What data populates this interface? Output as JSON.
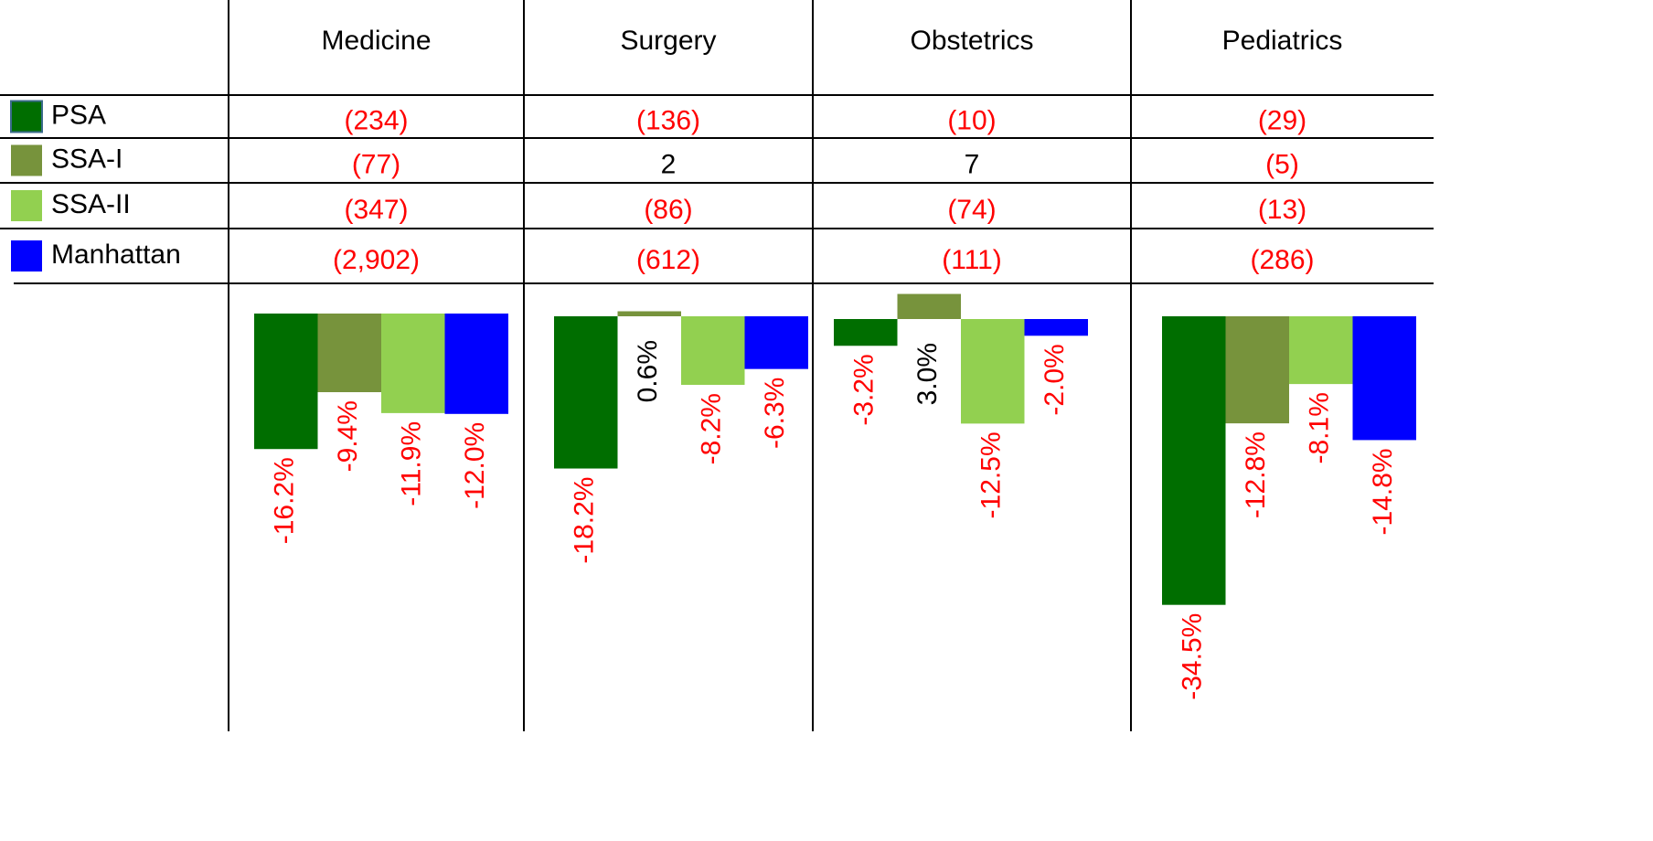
{
  "table": {
    "columns": [
      "Medicine",
      "Surgery",
      "Obstetrics",
      "Pediatrics"
    ],
    "rows": [
      {
        "label": "PSA",
        "color": "#006e00",
        "cells": [
          "(234)",
          "(136)",
          "(10)",
          "(29)"
        ]
      },
      {
        "label": "SSA-I",
        "color": "#77933c",
        "cells": [
          "(77)",
          "2",
          "7",
          "(5)"
        ]
      },
      {
        "label": "SSA-II",
        "color": "#92d050",
        "cells": [
          "(347)",
          "(86)",
          "(74)",
          "(13)"
        ]
      },
      {
        "label": "Manhattan",
        "color": "#0000ff",
        "cells": [
          "(2,902)",
          "(612)",
          "(111)",
          "(286)"
        ]
      }
    ]
  },
  "chart_data": [
    {
      "type": "bar",
      "values": [
        -16.2,
        -9.4,
        -11.9,
        -12.0
      ],
      "value_labels": [
        "-16.2%",
        "-9.4%",
        "-11.9%",
        "-12.0%"
      ]
    },
    {
      "type": "bar",
      "values": [
        -18.2,
        0.6,
        -8.2,
        -6.3
      ],
      "value_labels": [
        "-18.2%",
        "0.6%",
        "-8.2%",
        "-6.3%"
      ]
    },
    {
      "type": "bar",
      "values": [
        -3.2,
        3.0,
        -12.5,
        -2.0
      ],
      "value_labels": [
        "-3.2%",
        "3.0%",
        "-12.5%",
        "-2.0%"
      ]
    },
    {
      "type": "bar",
      "values": [
        -34.5,
        -12.8,
        -8.1,
        -14.8
      ],
      "value_labels": [
        "-34.5%",
        "-12.8%",
        "-8.1%",
        "-14.8%"
      ]
    }
  ]
}
